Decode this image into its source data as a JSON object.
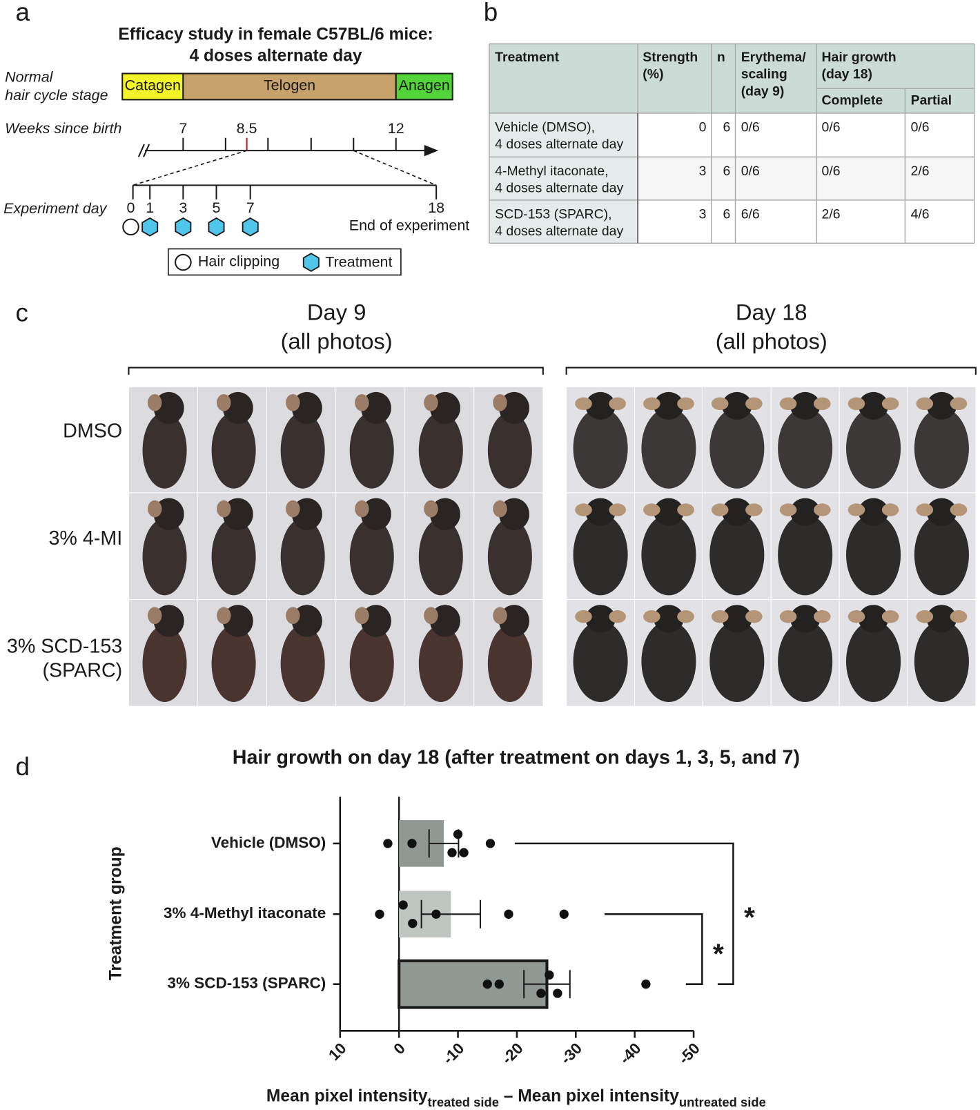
{
  "panel_a": {
    "label": "a",
    "title": [
      "Efficacy study in female C57BL/6 mice:",
      "4 doses alternate day"
    ],
    "stage_label": [
      "Normal",
      "hair cycle stage"
    ],
    "stages": [
      "Catagen",
      "Telogen",
      "Anagen"
    ],
    "weeks_label": "Weeks since birth",
    "weeks_ticks": [
      "7",
      "8.5",
      "12"
    ],
    "day_label": "Experiment day",
    "days": [
      "0",
      "1",
      "3",
      "5",
      "7",
      "18"
    ],
    "end_label": "End of experiment",
    "legend": [
      "Hair clipping",
      "Treatment"
    ]
  },
  "panel_b": {
    "label": "b",
    "headers": {
      "treatment": "Treatment",
      "strength": [
        "Strength",
        "(%)"
      ],
      "n": "n",
      "erythema": [
        "Erythema/",
        "scaling",
        "(day 9)"
      ],
      "hair_growth": [
        "Hair growth",
        "(day 18)"
      ],
      "complete": "Complete",
      "partial": "Partial"
    },
    "rows": [
      [
        [
          "Vehicle (DMSO),",
          "4 doses alternate day"
        ],
        "0",
        "6",
        "0/6",
        "0/6",
        "0/6"
      ],
      [
        [
          "4-Methyl itaconate,",
          "4 doses alternate day"
        ],
        "3",
        "6",
        "0/6",
        "0/6",
        "2/6"
      ],
      [
        [
          "SCD-153 (SPARC),",
          "4 doses alternate day"
        ],
        "3",
        "6",
        "6/6",
        "2/6",
        "4/6"
      ]
    ]
  },
  "panel_c": {
    "label": "c",
    "columns": [
      [
        "Day 9",
        "(all photos)"
      ],
      [
        "Day 18",
        "(all photos)"
      ]
    ],
    "rows": [
      [
        "DMSO"
      ],
      [
        "3% 4-MI"
      ],
      [
        "3% SCD-153",
        "(SPARC)"
      ]
    ]
  },
  "chart_data": {
    "type": "bar",
    "label": "d",
    "title": "Hair growth on day 18 (after treatment on days 1, 3, 5, and 7)",
    "categories": [
      "Vehicle (DMSO)",
      "3% 4-Methyl itaconate",
      "3% SCD-153 (SPARC)"
    ],
    "values": [
      -7.6,
      -8.8,
      -25.1
    ],
    "errors": [
      2.5,
      5,
      3.9
    ],
    "points": [
      [
        1.9,
        -2.2,
        -9,
        -10,
        -11,
        -15.5
      ],
      [
        3.3,
        -0.7,
        -2.3,
        -6.3,
        -18.6,
        -28
      ],
      [
        -15,
        -17,
        -24.1,
        -25.5,
        -26.9,
        -41.9
      ]
    ],
    "colors": [
      "#8f9893",
      "#bfc6c2",
      "#8f9893"
    ],
    "xlim": [
      10,
      -50
    ],
    "xticks": [
      10,
      0,
      -10,
      -20,
      -30,
      -40,
      -50
    ],
    "ylabel": "Treatment group",
    "xlabel": [
      "Mean pixel intensity",
      "treated side",
      " – Mean pixel intensity",
      "untreated side"
    ],
    "annotations": [
      {
        "text": "*"
      },
      {
        "text": "*"
      }
    ]
  }
}
